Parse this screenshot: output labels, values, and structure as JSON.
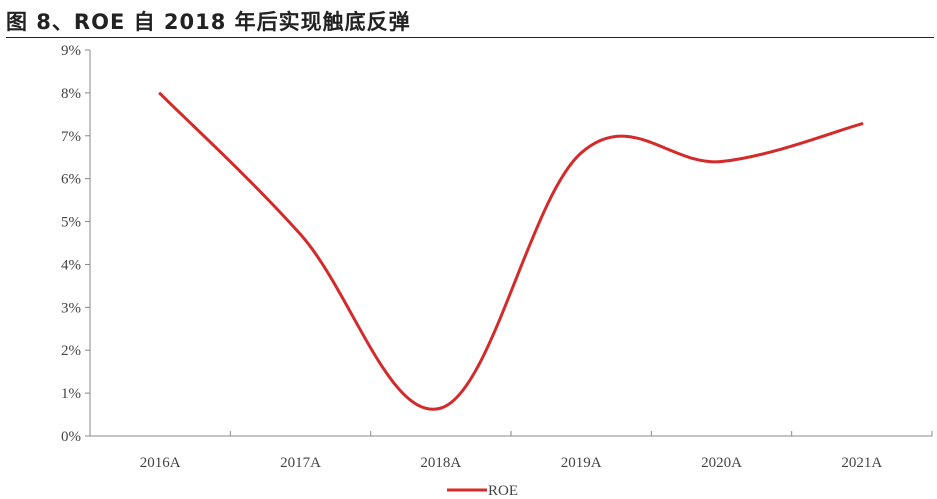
{
  "figure": {
    "title": "图 8、ROE 自 2018 年后实现触底反弹"
  },
  "chart_data": {
    "type": "line",
    "categories": [
      "2016A",
      "2017A",
      "2018A",
      "2019A",
      "2020A",
      "2021A"
    ],
    "series": [
      {
        "name": "ROE",
        "values": [
          7.98,
          4.7,
          0.65,
          6.6,
          6.4,
          7.28
        ],
        "unit": "%",
        "color": "#d42a2a",
        "smooth": true
      }
    ],
    "yticks": [
      "0%",
      "1%",
      "2%",
      "3%",
      "4%",
      "5%",
      "6%",
      "7%",
      "8%",
      "9%"
    ],
    "ylim": [
      0,
      9
    ],
    "grid": false,
    "legend": {
      "position": "bottom-center"
    },
    "title": "",
    "xlabel": "",
    "ylabel": ""
  }
}
